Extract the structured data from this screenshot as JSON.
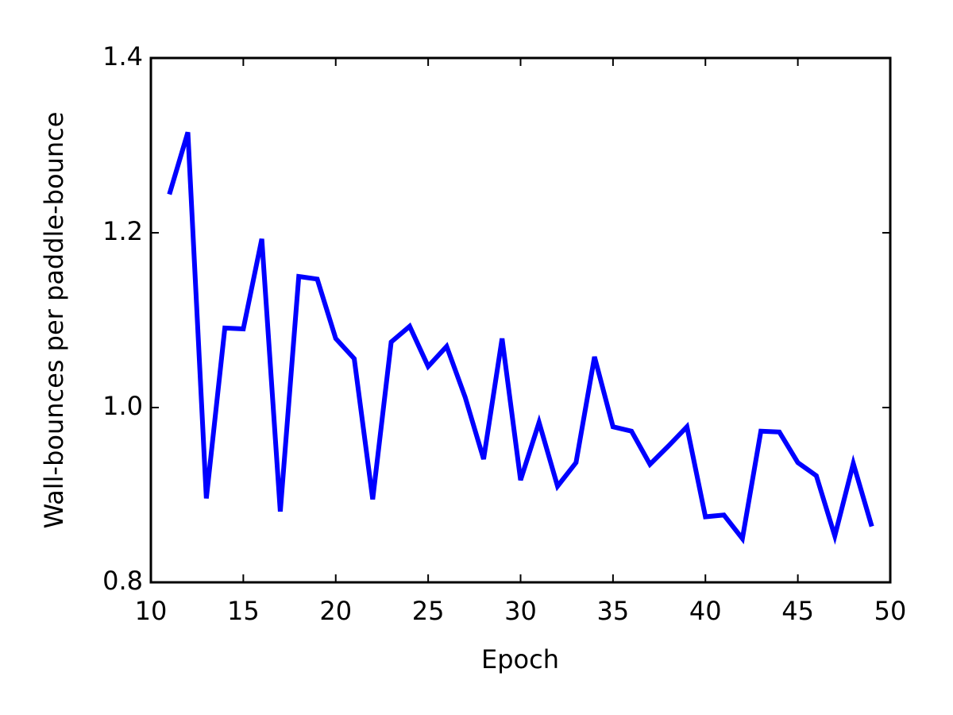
{
  "chart_data": {
    "type": "line",
    "xlabel": "Epoch",
    "ylabel": "Wall-bounces per paddle-bounce",
    "x": [
      11,
      12,
      13,
      14,
      15,
      16,
      17,
      18,
      19,
      20,
      21,
      22,
      23,
      24,
      25,
      26,
      27,
      28,
      29,
      30,
      31,
      32,
      33,
      34,
      35,
      36,
      37,
      38,
      39,
      40,
      41,
      42,
      43,
      44,
      45,
      46,
      47,
      48,
      49
    ],
    "series": [
      {
        "color": "#0000ff",
        "values": [
          1.244,
          1.315,
          0.896,
          1.091,
          1.09,
          1.193,
          0.881,
          1.15,
          1.147,
          1.079,
          1.056,
          0.895,
          1.075,
          1.093,
          1.047,
          1.07,
          1.012,
          0.941,
          1.079,
          0.917,
          0.983,
          0.91,
          0.937,
          1.058,
          0.978,
          0.973,
          0.935,
          0.956,
          0.978,
          0.875,
          0.877,
          0.85,
          0.973,
          0.972,
          0.937,
          0.922,
          0.853,
          0.936,
          0.864
        ]
      }
    ],
    "xlim": [
      10,
      50
    ],
    "xticks": [
      10,
      15,
      20,
      25,
      30,
      35,
      40,
      45,
      50
    ],
    "ylim": [
      0.8,
      1.4
    ],
    "yticks": [
      0.8,
      {
        "value": 1.0,
        "label": "1.0"
      },
      1.2,
      1.4
    ],
    "grid": false
  }
}
